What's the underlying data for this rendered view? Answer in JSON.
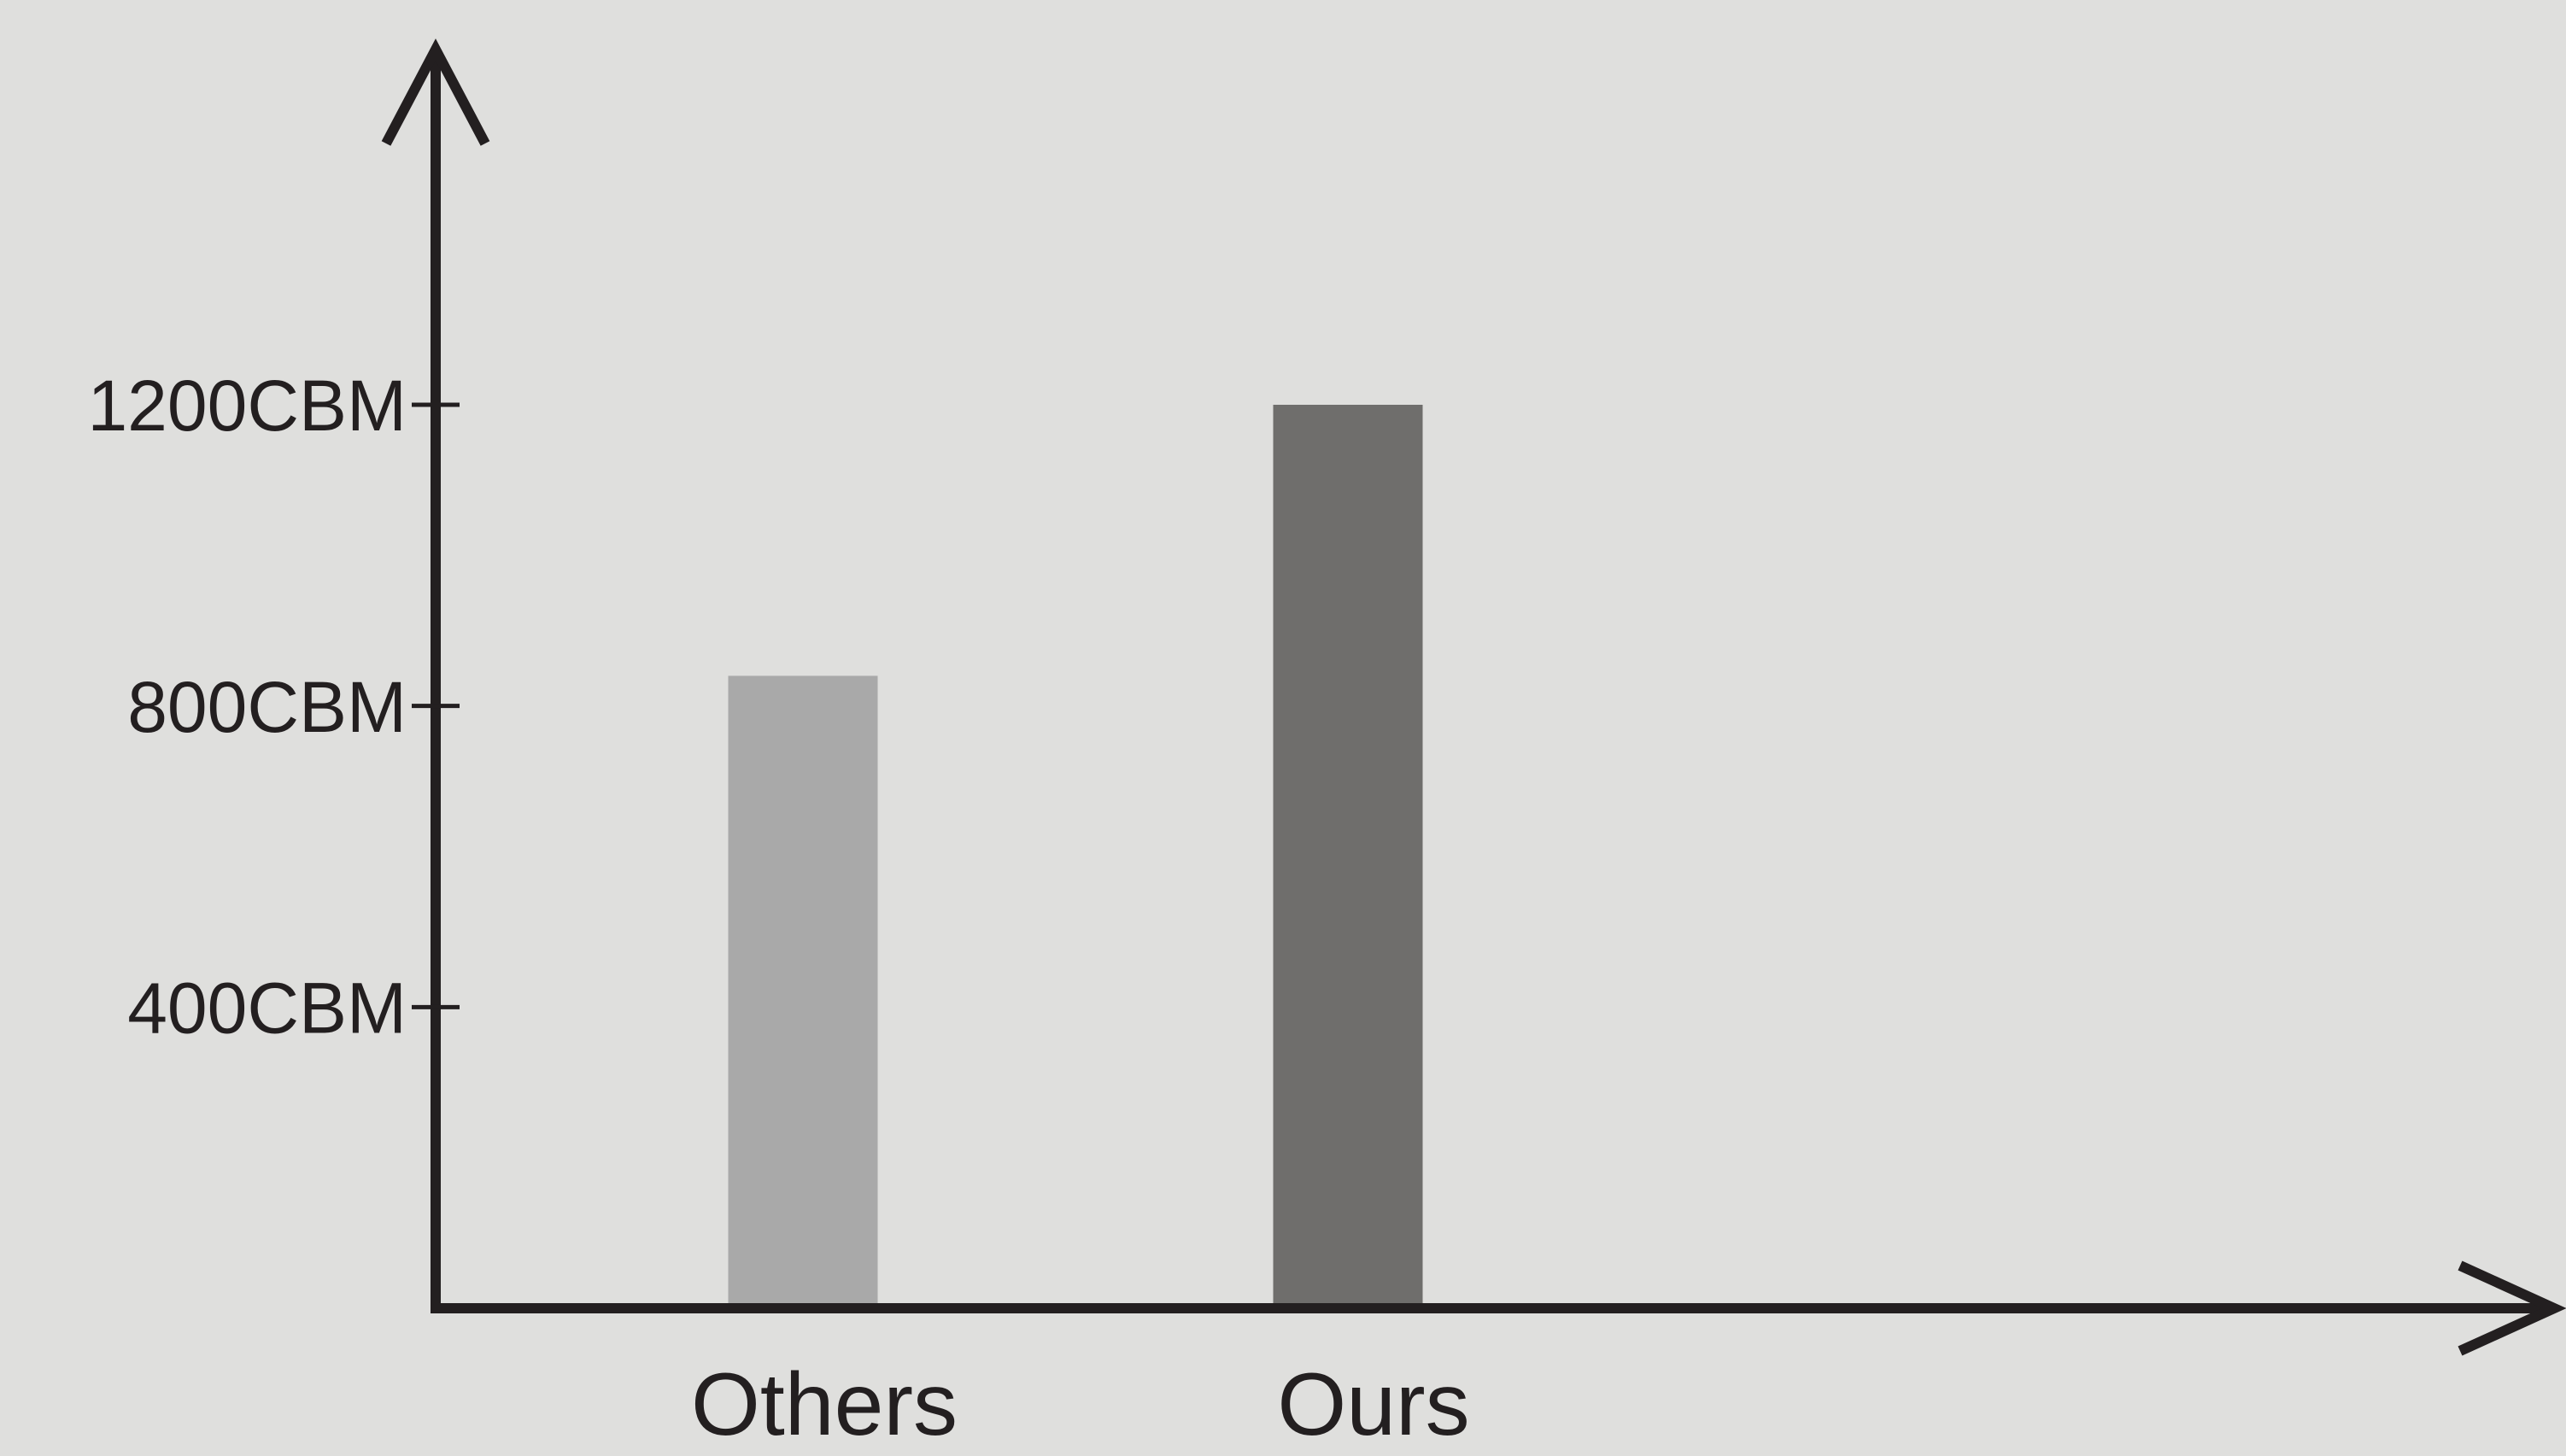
{
  "colors": {
    "background": "#dfdfdd",
    "axis": "#231f20",
    "text": "#231f20"
  },
  "chart_data": {
    "type": "bar",
    "categories": [
      "Others",
      "Ours"
    ],
    "series": [
      {
        "values": [
          840,
          1200
        ],
        "colors": [
          "#a9a9a9",
          "#6f6e6c"
        ]
      }
    ],
    "yticks": [
      400,
      800,
      1200
    ],
    "ytick_labels": [
      "400CBM",
      "800CBM",
      "1200CBM"
    ],
    "ylim": [
      0,
      1200
    ],
    "grid": false,
    "legend": "none",
    "xlabel": "",
    "ylabel": "",
    "title": ""
  }
}
